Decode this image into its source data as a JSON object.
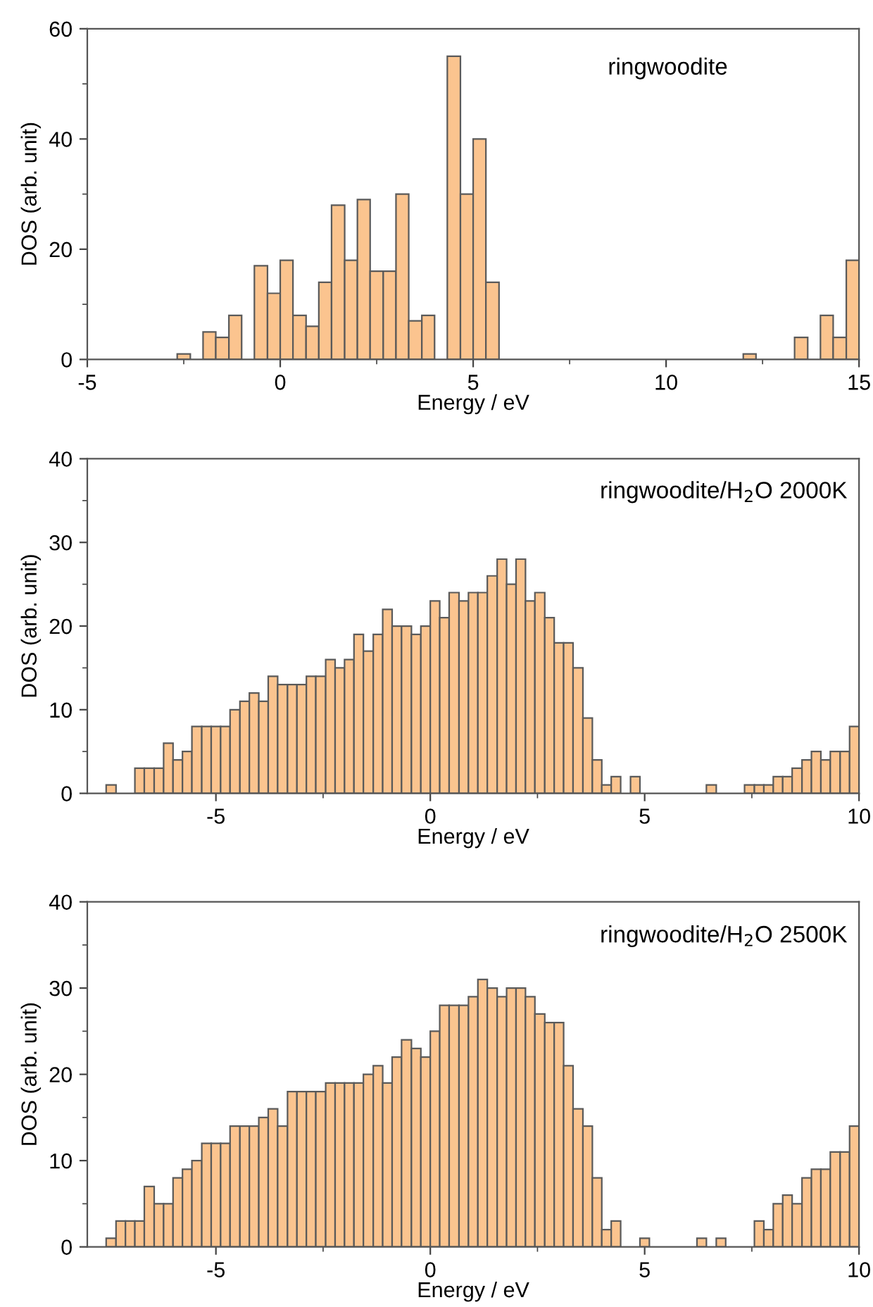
{
  "chart_data": [
    {
      "type": "histogram",
      "xlabel": "Energy / eV",
      "ylabel": "DOS (arb. unit)",
      "annotations": [
        "ringwoodite"
      ],
      "color": "#fbc48f",
      "grid": false,
      "bins": [
        -2.67,
        -2.33,
        -2,
        -1.67,
        -1.33,
        -1,
        -0.67,
        -0.33,
        0,
        0.33,
        0.67,
        1,
        1.33,
        1.67,
        2,
        2.33,
        2.67,
        3,
        3.33,
        3.67,
        4,
        4.33,
        4.67,
        5,
        5.33,
        5.67,
        12,
        12.33,
        13.33,
        13.67,
        14,
        14.33,
        14.67,
        15
      ],
      "values": [
        1,
        0,
        5,
        4,
        8,
        0,
        17,
        12,
        18,
        8,
        6,
        14,
        28,
        18,
        29,
        16,
        16,
        30,
        7,
        8,
        0,
        55,
        30,
        40,
        14,
        0,
        1,
        0,
        4,
        0,
        8,
        4,
        18
      ],
      "xlim": [
        -5,
        15
      ],
      "xticks": [
        -5,
        0,
        5,
        10,
        15
      ],
      "ylim": [
        0,
        60
      ],
      "yticks": [
        0,
        20,
        40,
        60
      ]
    },
    {
      "type": "histogram",
      "xlabel": "Energy / eV",
      "ylabel": "DOS (arb. unit)",
      "annotations": [
        "ringwoodite/H$_{2}$O 2000K"
      ],
      "color": "#fbc48f",
      "grid": false,
      "bins": [
        -7.56,
        -7.33,
        -6.89,
        -6.67,
        -6.44,
        -6.22,
        -6,
        -5.78,
        -5.56,
        -5.33,
        -5.11,
        -4.89,
        -4.67,
        -4.44,
        -4.22,
        -4,
        -3.78,
        -3.56,
        -3.33,
        -3.11,
        -2.89,
        -2.67,
        -2.44,
        -2.22,
        -2,
        -1.78,
        -1.56,
        -1.33,
        -1.11,
        -0.89,
        -0.67,
        -0.44,
        -0.22,
        0,
        0.22,
        0.44,
        0.67,
        0.89,
        1.11,
        1.33,
        1.56,
        1.78,
        2,
        2.22,
        2.44,
        2.67,
        2.89,
        3.11,
        3.33,
        3.56,
        3.78,
        4,
        4.22,
        4.44,
        4.67,
        4.89,
        6.44,
        6.67,
        7.33,
        7.56,
        7.78,
        8,
        8.22,
        8.44,
        8.67,
        8.89,
        9.11,
        9.33,
        9.56,
        9.78,
        10
      ],
      "values": [
        1,
        0,
        3,
        3,
        3,
        6,
        4,
        5,
        8,
        8,
        8,
        8,
        10,
        11,
        12,
        11,
        14,
        13,
        13,
        13,
        14,
        14,
        16,
        15,
        16,
        19,
        17,
        19,
        22,
        20,
        20,
        19,
        20,
        23,
        21,
        24,
        23,
        24,
        24,
        26,
        28,
        25,
        28,
        23,
        24,
        21,
        18,
        18,
        15,
        9,
        4,
        1,
        2,
        0,
        2,
        0,
        1,
        0,
        1,
        1,
        1,
        2,
        2,
        3,
        4,
        5,
        4,
        5,
        5,
        8
      ],
      "xlim": [
        -8,
        10
      ],
      "xticks": [
        -5,
        0,
        5,
        10
      ],
      "ylim": [
        0,
        40
      ],
      "yticks": [
        0,
        10,
        20,
        30,
        40
      ]
    },
    {
      "type": "histogram",
      "xlabel": "Energy / eV",
      "ylabel": "DOS (arb. unit)",
      "annotations": [
        "ringwoodite/H$_{2}$O 2500K"
      ],
      "color": "#fbc48f",
      "grid": false,
      "bins": [
        -7.56,
        -7.33,
        -7.11,
        -6.89,
        -6.67,
        -6.44,
        -6.22,
        -6,
        -5.78,
        -5.56,
        -5.33,
        -5.11,
        -4.89,
        -4.67,
        -4.44,
        -4.22,
        -4,
        -3.78,
        -3.56,
        -3.33,
        -3.11,
        -2.89,
        -2.67,
        -2.44,
        -2.22,
        -2,
        -1.78,
        -1.56,
        -1.33,
        -1.11,
        -0.89,
        -0.67,
        -0.44,
        -0.22,
        0,
        0.22,
        0.44,
        0.67,
        0.89,
        1.11,
        1.33,
        1.56,
        1.78,
        2,
        2.22,
        2.44,
        2.67,
        2.89,
        3.11,
        3.33,
        3.56,
        3.78,
        4,
        4.22,
        4.44,
        4.89,
        5.11,
        6.22,
        6.44,
        6.67,
        6.89,
        7.56,
        7.78,
        8,
        8.22,
        8.44,
        8.67,
        8.89,
        9.11,
        9.33,
        9.56,
        9.78,
        10
      ],
      "values": [
        1,
        3,
        3,
        3,
        7,
        5,
        5,
        8,
        9,
        10,
        12,
        12,
        12,
        14,
        14,
        14,
        15,
        16,
        14,
        18,
        18,
        18,
        18,
        19,
        19,
        19,
        19,
        20,
        21,
        19,
        22,
        24,
        23,
        22,
        25,
        28,
        28,
        28,
        29,
        31,
        30,
        29,
        30,
        30,
        29,
        27,
        26,
        26,
        21,
        16,
        14,
        8,
        2,
        3,
        0,
        1,
        0,
        1,
        0,
        1,
        0,
        3,
        2,
        5,
        6,
        5,
        8,
        9,
        9,
        11,
        11,
        14
      ],
      "xlim": [
        -8,
        10
      ],
      "xticks": [
        -5,
        0,
        5,
        10
      ],
      "ylim": [
        0,
        40
      ],
      "yticks": [
        0,
        10,
        20,
        30,
        40
      ]
    }
  ]
}
